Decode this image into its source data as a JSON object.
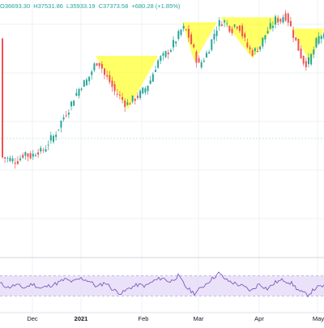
{
  "readout": {
    "open": "O36693.30",
    "high": "H37531.86",
    "low": "L35933.19",
    "close": "C37373.58",
    "change": "+680.28 (+1.85%)"
  },
  "colors": {
    "up": "#26a69a",
    "down": "#ef5350",
    "pattern_fill": "#ffff00",
    "rsi_line": "#7e57c2",
    "rsi_band": "#e1d5f5",
    "grid": "#eef1f6",
    "dashed": "#b2dfdb"
  },
  "x_axis": {
    "labels": [
      "Dec",
      "2021",
      "Feb",
      "Mar",
      "Apr",
      "May"
    ]
  },
  "chart_data": {
    "type": "candlestick",
    "title": "",
    "xlabel": "",
    "ylabel": "",
    "grid": true,
    "price_range": [
      0,
      100
    ],
    "rsi_range": [
      0,
      100
    ],
    "rsi_bands": [
      30,
      70
    ],
    "anchor_points": [
      [
        0,
        38
      ],
      [
        10,
        37
      ],
      [
        20,
        36
      ],
      [
        25,
        38
      ],
      [
        30,
        40
      ],
      [
        35,
        38
      ],
      [
        40,
        39
      ],
      [
        45,
        41
      ],
      [
        50,
        40
      ],
      [
        55,
        42
      ],
      [
        60,
        45
      ],
      [
        65,
        47
      ],
      [
        70,
        50
      ],
      [
        75,
        54
      ],
      [
        80,
        57
      ],
      [
        85,
        60
      ],
      [
        90,
        64
      ],
      [
        95,
        67
      ],
      [
        100,
        70
      ],
      [
        105,
        71
      ],
      [
        110,
        74
      ],
      [
        115,
        78
      ],
      [
        118,
        80
      ],
      [
        123,
        79
      ],
      [
        128,
        74
      ],
      [
        133,
        72
      ],
      [
        140,
        67
      ],
      [
        148,
        64
      ],
      [
        155,
        61
      ],
      [
        162,
        63
      ],
      [
        170,
        65
      ],
      [
        178,
        68
      ],
      [
        185,
        72
      ],
      [
        190,
        77
      ],
      [
        195,
        81
      ],
      [
        200,
        82
      ],
      [
        205,
        84
      ],
      [
        210,
        86
      ],
      [
        215,
        89
      ],
      [
        220,
        92
      ],
      [
        224,
        95
      ],
      [
        230,
        93
      ],
      [
        235,
        88
      ],
      [
        240,
        83
      ],
      [
        244,
        78
      ],
      [
        248,
        80
      ],
      [
        252,
        82
      ],
      [
        256,
        85
      ],
      [
        260,
        89
      ],
      [
        265,
        94
      ],
      [
        270,
        97
      ],
      [
        275,
        98
      ],
      [
        280,
        96
      ],
      [
        285,
        94
      ],
      [
        290,
        97
      ],
      [
        295,
        95
      ],
      [
        300,
        90
      ],
      [
        305,
        86
      ],
      [
        310,
        84
      ],
      [
        315,
        85
      ],
      [
        320,
        87
      ],
      [
        325,
        91
      ],
      [
        330,
        94
      ],
      [
        335,
        96
      ],
      [
        340,
        99
      ],
      [
        345,
        98
      ],
      [
        350,
        101
      ],
      [
        355,
        98
      ],
      [
        360,
        93
      ],
      [
        365,
        88
      ],
      [
        370,
        83
      ],
      [
        375,
        79
      ],
      [
        380,
        80
      ],
      [
        385,
        84
      ],
      [
        390,
        89
      ],
      [
        395,
        92
      ],
      [
        400,
        90
      ]
    ],
    "rsi_anchor_points": [
      [
        0,
        55
      ],
      [
        10,
        47
      ],
      [
        20,
        52
      ],
      [
        30,
        46
      ],
      [
        40,
        54
      ],
      [
        50,
        45
      ],
      [
        60,
        50
      ],
      [
        70,
        55
      ],
      [
        80,
        63
      ],
      [
        90,
        58
      ],
      [
        100,
        65
      ],
      [
        110,
        60
      ],
      [
        120,
        48
      ],
      [
        130,
        57
      ],
      [
        140,
        42
      ],
      [
        150,
        35
      ],
      [
        160,
        46
      ],
      [
        170,
        52
      ],
      [
        180,
        50
      ],
      [
        190,
        60
      ],
      [
        200,
        66
      ],
      [
        210,
        58
      ],
      [
        220,
        70
      ],
      [
        230,
        47
      ],
      [
        240,
        35
      ],
      [
        250,
        48
      ],
      [
        260,
        62
      ],
      [
        270,
        75
      ],
      [
        280,
        61
      ],
      [
        290,
        55
      ],
      [
        300,
        49
      ],
      [
        310,
        40
      ],
      [
        320,
        54
      ],
      [
        330,
        44
      ],
      [
        340,
        57
      ],
      [
        350,
        62
      ],
      [
        360,
        55
      ],
      [
        370,
        39
      ],
      [
        380,
        32
      ],
      [
        390,
        46
      ],
      [
        400,
        50
      ]
    ],
    "patterns": [
      {
        "name": "pattern-1",
        "x_start": 118,
        "x_end": 195,
        "apex_x": 158
      },
      {
        "name": "pattern-2",
        "x_start": 225,
        "x_end": 268,
        "apex_x": 240
      },
      {
        "name": "pattern-3",
        "x_start": 272,
        "x_end": 345,
        "apex_x": 312
      },
      {
        "name": "pattern-4",
        "x_start": 360,
        "x_end": 400,
        "apex_x": 383
      }
    ]
  }
}
